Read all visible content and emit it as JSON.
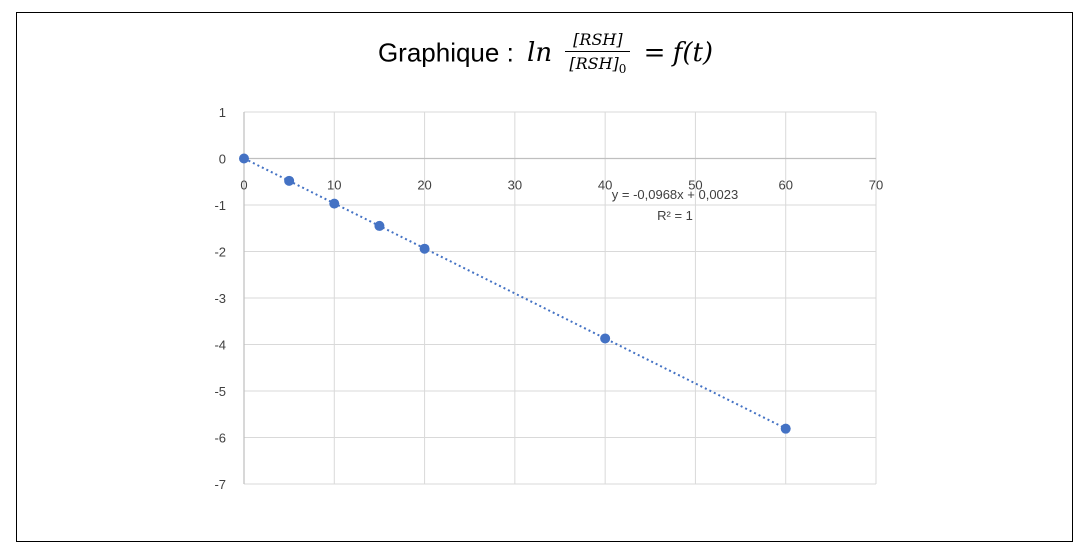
{
  "title": {
    "prefix": "Graphique :",
    "ln": "ln",
    "numerator": "[RSH]",
    "denominator": "[RSH]",
    "denominator_sub": "0",
    "equals": "=",
    "rhs": "f(t)"
  },
  "chart_data": {
    "type": "scatter",
    "title": "Graphique : ln [RSH]/[RSH]0 = f(t)",
    "xlabel": "",
    "ylabel": "",
    "xlim": [
      0,
      70
    ],
    "ylim": [
      -7,
      1
    ],
    "x_ticks": [
      0,
      10,
      20,
      30,
      40,
      50,
      60,
      70
    ],
    "y_ticks": [
      1,
      0,
      -1,
      -2,
      -3,
      -4,
      -5,
      -6,
      -7
    ],
    "grid": true,
    "legend": "none",
    "series": [
      {
        "x": [
          0,
          5,
          10,
          15,
          20,
          40,
          60
        ],
        "y": [
          0,
          -0.48,
          -0.97,
          -1.45,
          -1.94,
          -3.87,
          -5.81
        ],
        "color": "#4472C4"
      }
    ],
    "trendline": {
      "type": "linear",
      "slope": -0.0968,
      "intercept": 0.0023,
      "style": "dotted",
      "color": "#4472C4",
      "equation": "y = -0,0968x + 0,0023",
      "r2": "R² = 1"
    }
  }
}
